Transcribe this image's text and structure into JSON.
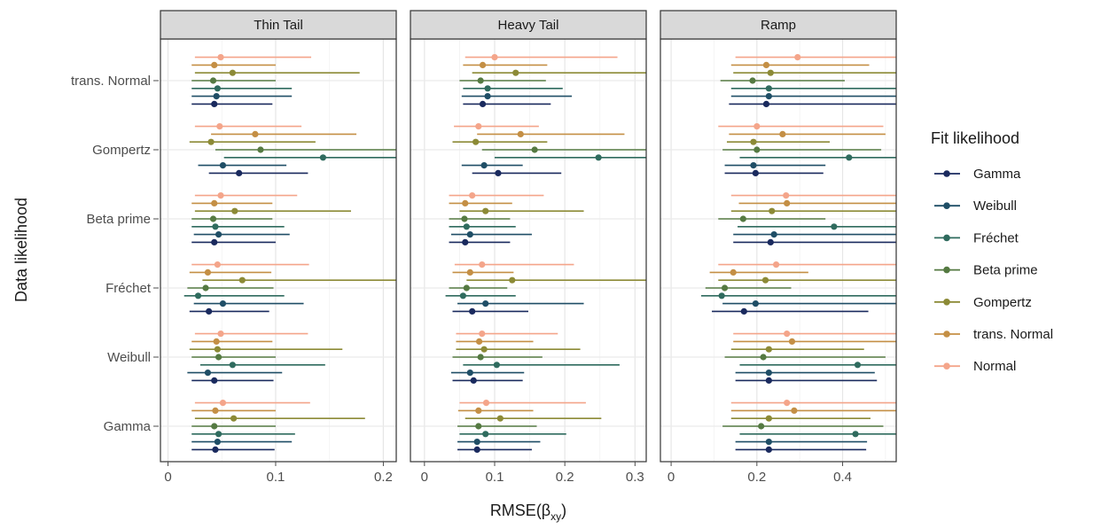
{
  "chart_data": {
    "type": "forest-plot",
    "ylabel": "Data likelihood",
    "xlabel": "RMSE(β",
    "xlabel_sub": "xy",
    "xlabel_close": ")",
    "data_likelihoods": [
      "trans. Normal",
      "Gompertz",
      "Beta prime",
      "Fréchet",
      "Weibull",
      "Gamma"
    ],
    "legend": {
      "title": "Fit likelihood",
      "placement": "right",
      "entries": [
        {
          "name": "Gamma",
          "color": "#1a2a5e"
        },
        {
          "name": "Weibull",
          "color": "#1f4e66"
        },
        {
          "name": "Fréchet",
          "color": "#2f6b5e"
        },
        {
          "name": "Beta prime",
          "color": "#557a42"
        },
        {
          "name": "Gompertz",
          "color": "#8c8a36"
        },
        {
          "name": "trans. Normal",
          "color": "#c48f45"
        },
        {
          "name": "Normal",
          "color": "#f4a58a"
        }
      ]
    },
    "panels": [
      {
        "title": "Thin Tail",
        "xlim": [
          -0.007,
          0.212
        ],
        "ticks": [
          0,
          0.1,
          0.2
        ],
        "tick_labels": [
          "0",
          "0.1",
          "0.2"
        ],
        "groups": [
          {
            "data": "trans. Normal",
            "points": [
              [
                0.043,
                0.022,
                0.097
              ],
              [
                0.045,
                0.022,
                0.115
              ],
              [
                0.046,
                0.022,
                0.115
              ],
              [
                0.042,
                0.022,
                0.1
              ],
              [
                0.06,
                0.025,
                0.178
              ],
              [
                0.043,
                0.022,
                0.1
              ],
              [
                0.049,
                0.025,
                0.133
              ]
            ]
          },
          {
            "data": "Gompertz",
            "points": [
              [
                0.066,
                0.038,
                0.13
              ],
              [
                0.051,
                0.028,
                0.11
              ],
              [
                0.144,
                0.052,
                0.212
              ],
              [
                0.086,
                0.044,
                0.212
              ],
              [
                0.04,
                0.02,
                0.137
              ],
              [
                0.081,
                0.04,
                0.175
              ],
              [
                0.048,
                0.025,
                0.124
              ]
            ]
          },
          {
            "data": "Beta prime",
            "points": [
              [
                0.043,
                0.022,
                0.1
              ],
              [
                0.047,
                0.024,
                0.113
              ],
              [
                0.044,
                0.022,
                0.108
              ],
              [
                0.042,
                0.022,
                0.097
              ],
              [
                0.062,
                0.025,
                0.17
              ],
              [
                0.043,
                0.022,
                0.097
              ],
              [
                0.049,
                0.025,
                0.12
              ]
            ]
          },
          {
            "data": "Fréchet",
            "points": [
              [
                0.038,
                0.02,
                0.094
              ],
              [
                0.051,
                0.024,
                0.126
              ],
              [
                0.028,
                0.015,
                0.108
              ],
              [
                0.035,
                0.018,
                0.098
              ],
              [
                0.069,
                0.032,
                0.212
              ],
              [
                0.037,
                0.02,
                0.096
              ],
              [
                0.046,
                0.022,
                0.131
              ]
            ]
          },
          {
            "data": "Weibull",
            "points": [
              [
                0.043,
                0.022,
                0.098
              ],
              [
                0.037,
                0.018,
                0.106
              ],
              [
                0.06,
                0.03,
                0.146
              ],
              [
                0.047,
                0.022,
                0.1
              ],
              [
                0.046,
                0.02,
                0.162
              ],
              [
                0.045,
                0.022,
                0.097
              ],
              [
                0.049,
                0.025,
                0.13
              ]
            ]
          },
          {
            "data": "Gamma",
            "points": [
              [
                0.044,
                0.022,
                0.099
              ],
              [
                0.046,
                0.022,
                0.115
              ],
              [
                0.047,
                0.022,
                0.118
              ],
              [
                0.043,
                0.022,
                0.1
              ],
              [
                0.061,
                0.025,
                0.183
              ],
              [
                0.044,
                0.022,
                0.1
              ],
              [
                0.051,
                0.025,
                0.132
              ]
            ]
          }
        ]
      },
      {
        "title": "Heavy Tail",
        "xlim": [
          -0.02,
          0.316
        ],
        "ticks": [
          0,
          0.1,
          0.2,
          0.3
        ],
        "tick_labels": [
          "0",
          "0.1",
          "0.2",
          "0.3"
        ],
        "groups": [
          {
            "data": "trans. Normal",
            "points": [
              [
                0.083,
                0.055,
                0.18
              ],
              [
                0.09,
                0.053,
                0.21
              ],
              [
                0.09,
                0.055,
                0.197
              ],
              [
                0.08,
                0.05,
                0.173
              ],
              [
                0.13,
                0.068,
                0.316
              ],
              [
                0.083,
                0.055,
                0.175
              ],
              [
                0.1,
                0.058,
                0.275
              ]
            ]
          },
          {
            "data": "Gompertz",
            "points": [
              [
                0.105,
                0.068,
                0.195
              ],
              [
                0.085,
                0.053,
                0.14
              ],
              [
                0.248,
                0.1,
                0.316
              ],
              [
                0.157,
                0.082,
                0.316
              ],
              [
                0.073,
                0.04,
                0.175
              ],
              [
                0.137,
                0.075,
                0.285
              ],
              [
                0.077,
                0.042,
                0.163
              ]
            ]
          },
          {
            "data": "Beta prime",
            "points": [
              [
                0.058,
                0.035,
                0.122
              ],
              [
                0.065,
                0.038,
                0.153
              ],
              [
                0.06,
                0.035,
                0.13
              ],
              [
                0.057,
                0.035,
                0.122
              ],
              [
                0.087,
                0.05,
                0.227
              ],
              [
                0.058,
                0.035,
                0.125
              ],
              [
                0.068,
                0.035,
                0.17
              ]
            ]
          },
          {
            "data": "Fréchet",
            "points": [
              [
                0.068,
                0.04,
                0.148
              ],
              [
                0.087,
                0.047,
                0.227
              ],
              [
                0.055,
                0.03,
                0.13
              ],
              [
                0.06,
                0.035,
                0.118
              ],
              [
                0.125,
                0.06,
                0.316
              ],
              [
                0.065,
                0.04,
                0.127
              ],
              [
                0.082,
                0.043,
                0.213
              ]
            ]
          },
          {
            "data": "Weibull",
            "points": [
              [
                0.07,
                0.04,
                0.14
              ],
              [
                0.065,
                0.038,
                0.142
              ],
              [
                0.103,
                0.055,
                0.278
              ],
              [
                0.08,
                0.04,
                0.168
              ],
              [
                0.085,
                0.045,
                0.222
              ],
              [
                0.078,
                0.045,
                0.155
              ],
              [
                0.082,
                0.045,
                0.19
              ]
            ]
          },
          {
            "data": "Gamma",
            "points": [
              [
                0.075,
                0.047,
                0.153
              ],
              [
                0.075,
                0.047,
                0.165
              ],
              [
                0.087,
                0.05,
                0.202
              ],
              [
                0.077,
                0.047,
                0.16
              ],
              [
                0.108,
                0.058,
                0.252
              ],
              [
                0.077,
                0.048,
                0.155
              ],
              [
                0.088,
                0.05,
                0.23
              ]
            ]
          }
        ]
      },
      {
        "title": "Ramp",
        "xlim": [
          -0.025,
          0.525
        ],
        "ticks": [
          0,
          0.2,
          0.4
        ],
        "tick_labels": [
          "0",
          "0.2",
          "0.4"
        ],
        "groups": [
          {
            "data": "trans. Normal",
            "points": [
              [
                0.222,
                0.135,
                0.525
              ],
              [
                0.228,
                0.14,
                0.525
              ],
              [
                0.228,
                0.14,
                0.525
              ],
              [
                0.19,
                0.115,
                0.405
              ],
              [
                0.232,
                0.145,
                0.525
              ],
              [
                0.222,
                0.14,
                0.462
              ],
              [
                0.295,
                0.15,
                0.525
              ]
            ]
          },
          {
            "data": "Gompertz",
            "points": [
              [
                0.197,
                0.125,
                0.355
              ],
              [
                0.192,
                0.125,
                0.36
              ],
              [
                0.415,
                0.16,
                0.525
              ],
              [
                0.2,
                0.12,
                0.49
              ],
              [
                0.192,
                0.13,
                0.37
              ],
              [
                0.26,
                0.135,
                0.5
              ],
              [
                0.2,
                0.11,
                0.495
              ]
            ]
          },
          {
            "data": "Beta prime",
            "points": [
              [
                0.232,
                0.145,
                0.525
              ],
              [
                0.24,
                0.145,
                0.525
              ],
              [
                0.38,
                0.155,
                0.525
              ],
              [
                0.168,
                0.11,
                0.36
              ],
              [
                0.235,
                0.14,
                0.525
              ],
              [
                0.27,
                0.158,
                0.525
              ],
              [
                0.268,
                0.14,
                0.525
              ]
            ]
          },
          {
            "data": "Fréchet",
            "points": [
              [
                0.17,
                0.095,
                0.46
              ],
              [
                0.197,
                0.12,
                0.525
              ],
              [
                0.118,
                0.07,
                0.525
              ],
              [
                0.125,
                0.08,
                0.28
              ],
              [
                0.22,
                0.11,
                0.525
              ],
              [
                0.145,
                0.09,
                0.32
              ],
              [
                0.245,
                0.11,
                0.525
              ]
            ]
          },
          {
            "data": "Weibull",
            "points": [
              [
                0.228,
                0.15,
                0.48
              ],
              [
                0.228,
                0.15,
                0.475
              ],
              [
                0.435,
                0.16,
                0.525
              ],
              [
                0.215,
                0.125,
                0.5
              ],
              [
                0.228,
                0.14,
                0.45
              ],
              [
                0.282,
                0.145,
                0.525
              ],
              [
                0.27,
                0.145,
                0.525
              ]
            ]
          },
          {
            "data": "Gamma",
            "points": [
              [
                0.228,
                0.15,
                0.455
              ],
              [
                0.228,
                0.15,
                0.457
              ],
              [
                0.43,
                0.16,
                0.525
              ],
              [
                0.21,
                0.12,
                0.495
              ],
              [
                0.228,
                0.14,
                0.465
              ],
              [
                0.287,
                0.14,
                0.525
              ],
              [
                0.27,
                0.14,
                0.525
              ]
            ]
          }
        ]
      }
    ]
  }
}
